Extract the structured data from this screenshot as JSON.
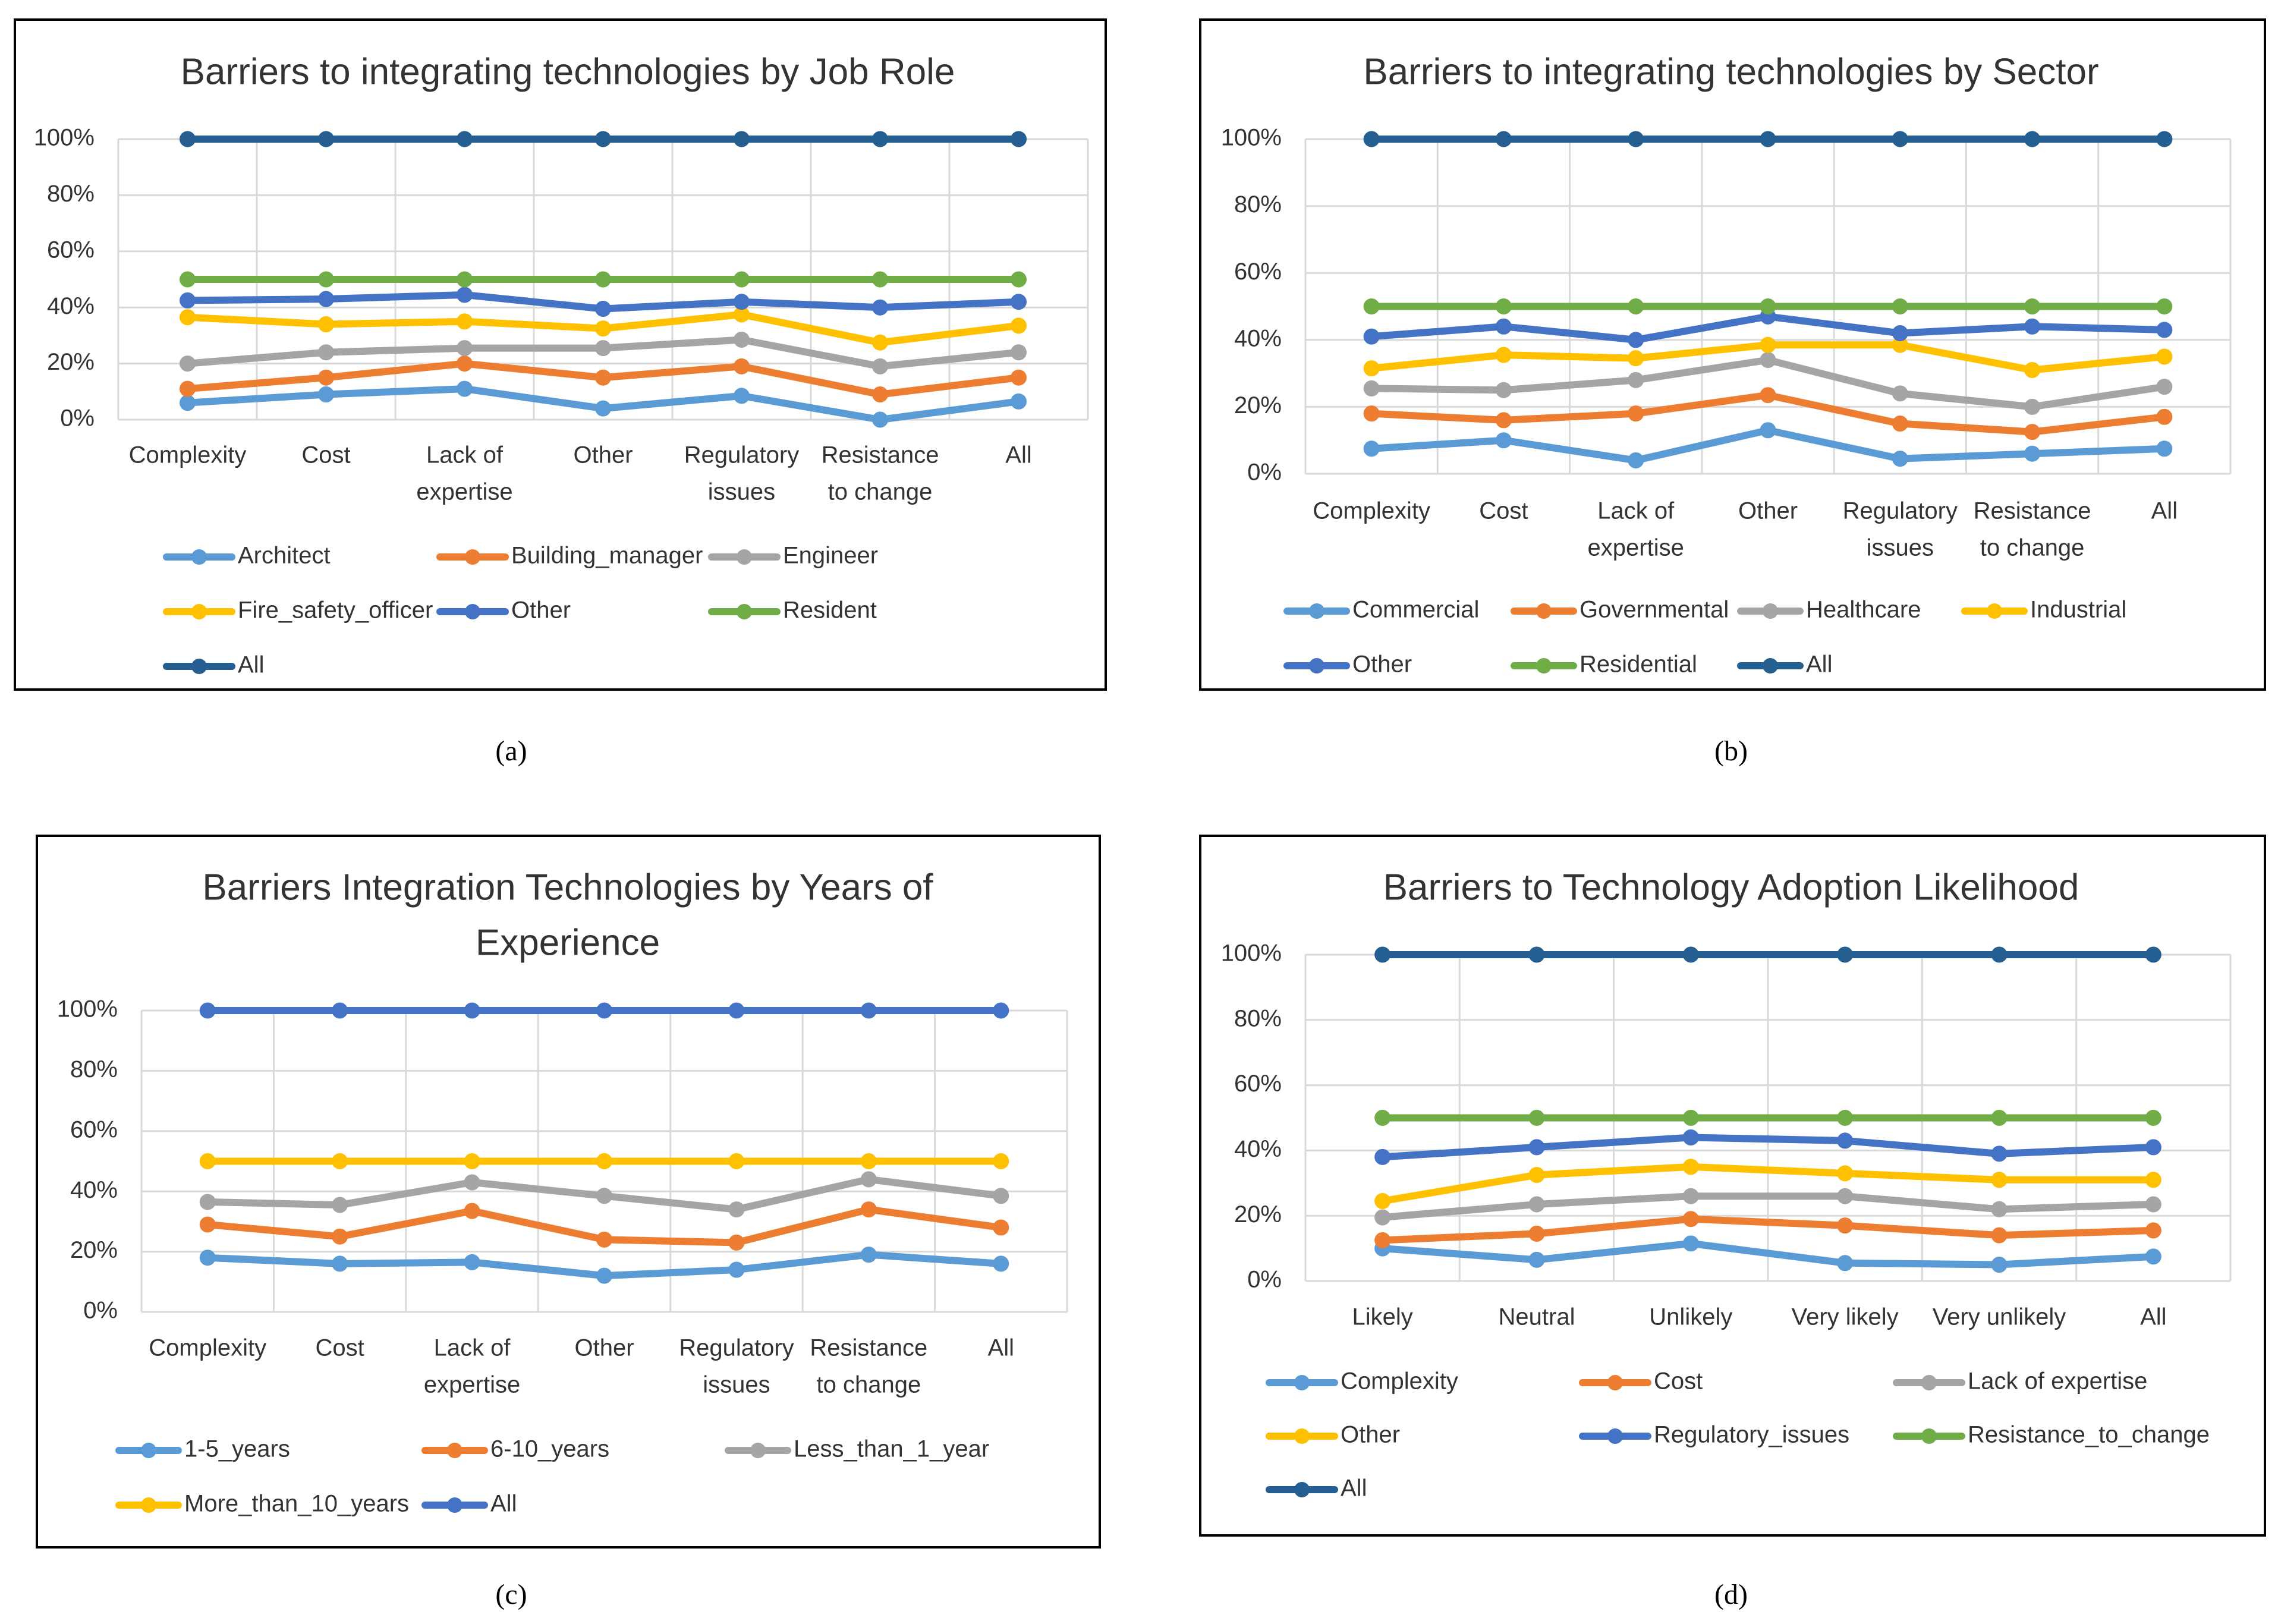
{
  "colors": {
    "c_lightblue": "#5B9BD5",
    "c_orange": "#ED7D31",
    "c_gray": "#A5A5A5",
    "c_yellow": "#FFC000",
    "c_blue": "#4472C4",
    "c_green": "#70AD47",
    "c_darkblue": "#255E91",
    "grid": "#D9D9D9",
    "frame": "#000000",
    "text": "#333333"
  },
  "chart_data": [
    {
      "id": "a",
      "type": "line",
      "caption": "(a)",
      "title": [
        "Barriers to integrating technologies by Job Role"
      ],
      "categories": [
        [
          "Complexity"
        ],
        [
          "Cost"
        ],
        [
          "Lack of",
          "expertise"
        ],
        [
          "Other"
        ],
        [
          "Regulatory",
          "issues"
        ],
        [
          "Resistance",
          "to change"
        ],
        [
          "All"
        ]
      ],
      "yticks": [
        "0%",
        "20%",
        "40%",
        "60%",
        "80%",
        "100%"
      ],
      "ylim": [
        0,
        100
      ],
      "legend_position": "bottom",
      "legend_columns": 3,
      "series": [
        {
          "name": "Architect",
          "color": "c_lightblue",
          "values": [
            6,
            9,
            11,
            4,
            8.5,
            0,
            6.5
          ]
        },
        {
          "name": "Building_manager",
          "color": "c_orange",
          "values": [
            11,
            15,
            20,
            15,
            19,
            9,
            15
          ]
        },
        {
          "name": "Engineer",
          "color": "c_gray",
          "values": [
            20,
            24,
            25.5,
            25.5,
            28.5,
            19,
            24
          ]
        },
        {
          "name": "Fire_safety_officer",
          "color": "c_yellow",
          "values": [
            36.5,
            34,
            35,
            32.5,
            37.5,
            27.5,
            33.5
          ]
        },
        {
          "name": "Other",
          "color": "c_blue",
          "values": [
            42.5,
            43,
            44.5,
            39.5,
            42,
            40,
            42
          ]
        },
        {
          "name": "Resident",
          "color": "c_green",
          "values": [
            50,
            50,
            50,
            50,
            50,
            50,
            50
          ]
        },
        {
          "name": "All",
          "color": "c_darkblue",
          "values": [
            100,
            100,
            100,
            100,
            100,
            100,
            100
          ]
        }
      ]
    },
    {
      "id": "b",
      "type": "line",
      "caption": "(b)",
      "title": [
        "Barriers to integrating technologies by Sector"
      ],
      "categories": [
        [
          "Complexity"
        ],
        [
          "Cost"
        ],
        [
          "Lack of",
          "expertise"
        ],
        [
          "Other"
        ],
        [
          "Regulatory",
          "issues"
        ],
        [
          "Resistance",
          "to change"
        ],
        [
          "All"
        ]
      ],
      "yticks": [
        "0%",
        "20%",
        "40%",
        "60%",
        "80%",
        "100%"
      ],
      "ylim": [
        0,
        100
      ],
      "legend_position": "bottom",
      "legend_columns": 4,
      "series": [
        {
          "name": "Commercial",
          "color": "c_lightblue",
          "values": [
            7.5,
            10,
            4,
            13,
            4.5,
            6,
            7.5
          ]
        },
        {
          "name": "Governmental",
          "color": "c_orange",
          "values": [
            18,
            16,
            18,
            23.5,
            15,
            12.5,
            17
          ]
        },
        {
          "name": "Healthcare",
          "color": "c_gray",
          "values": [
            25.5,
            25,
            28,
            34,
            24,
            20,
            26
          ]
        },
        {
          "name": "Industrial",
          "color": "c_yellow",
          "values": [
            31.5,
            35.5,
            34.5,
            38.5,
            38.5,
            31,
            35
          ]
        },
        {
          "name": "Other",
          "color": "c_blue",
          "values": [
            41,
            44,
            40,
            47,
            42,
            44,
            43
          ]
        },
        {
          "name": "Residential",
          "color": "c_green",
          "values": [
            50,
            50,
            50,
            50,
            50,
            50,
            50
          ]
        },
        {
          "name": "All",
          "color": "c_darkblue",
          "values": [
            100,
            100,
            100,
            100,
            100,
            100,
            100
          ]
        }
      ]
    },
    {
      "id": "c",
      "type": "line",
      "caption": "(c)",
      "title": [
        "Barriers Integration Technologies by Years of",
        "Experience"
      ],
      "categories": [
        [
          "Complexity"
        ],
        [
          "Cost"
        ],
        [
          "Lack of",
          "expertise"
        ],
        [
          "Other"
        ],
        [
          "Regulatory",
          "issues"
        ],
        [
          "Resistance",
          "to change"
        ],
        [
          "All"
        ]
      ],
      "yticks": [
        "0%",
        "20%",
        "40%",
        "60%",
        "80%",
        "100%"
      ],
      "ylim": [
        0,
        100
      ],
      "legend_position": "bottom",
      "legend_columns": 3,
      "series": [
        {
          "name": "1-5_years",
          "color": "c_lightblue",
          "values": [
            18,
            16,
            16.5,
            12,
            14,
            19,
            16
          ]
        },
        {
          "name": "6-10_years",
          "color": "c_orange",
          "values": [
            29,
            25,
            33.5,
            24,
            23,
            34,
            28
          ]
        },
        {
          "name": "Less_than_1_year",
          "color": "c_gray",
          "values": [
            36.5,
            35.5,
            43,
            38.5,
            34,
            44,
            38.5
          ]
        },
        {
          "name": "More_than_10_years",
          "color": "c_yellow",
          "values": [
            50,
            50,
            50,
            50,
            50,
            50,
            50
          ]
        },
        {
          "name": "All",
          "color": "c_blue",
          "values": [
            100,
            100,
            100,
            100,
            100,
            100,
            100
          ]
        }
      ]
    },
    {
      "id": "d",
      "type": "line",
      "caption": "(d)",
      "title": [
        "Barriers to Technology Adoption Likelihood"
      ],
      "categories": [
        [
          "Likely"
        ],
        [
          "Neutral"
        ],
        [
          "Unlikely"
        ],
        [
          "Very likely"
        ],
        [
          "Very unlikely"
        ],
        [
          "All"
        ]
      ],
      "yticks": [
        "0%",
        "20%",
        "40%",
        "60%",
        "80%",
        "100%"
      ],
      "ylim": [
        0,
        100
      ],
      "legend_position": "bottom",
      "legend_columns": 3,
      "series": [
        {
          "name": "Complexity",
          "color": "c_lightblue",
          "values": [
            10,
            6.5,
            11.5,
            5.5,
            5,
            7.5
          ]
        },
        {
          "name": "Cost",
          "color": "c_orange",
          "values": [
            12.5,
            14.5,
            19,
            17,
            14,
            15.5
          ]
        },
        {
          "name": "Lack of expertise",
          "color": "c_gray",
          "values": [
            19.5,
            23.5,
            26,
            26,
            22,
            23.5
          ]
        },
        {
          "name": "Other",
          "color": "c_yellow",
          "values": [
            24.5,
            32.5,
            35,
            33,
            31,
            31
          ]
        },
        {
          "name": "Regulatory_issues",
          "color": "c_blue",
          "values": [
            38,
            41,
            44,
            43,
            39,
            41
          ]
        },
        {
          "name": "Resistance_to_change",
          "color": "c_green",
          "values": [
            50,
            50,
            50,
            50,
            50,
            50
          ]
        },
        {
          "name": "All",
          "color": "c_darkblue",
          "values": [
            100,
            100,
            100,
            100,
            100,
            100
          ]
        }
      ]
    }
  ]
}
